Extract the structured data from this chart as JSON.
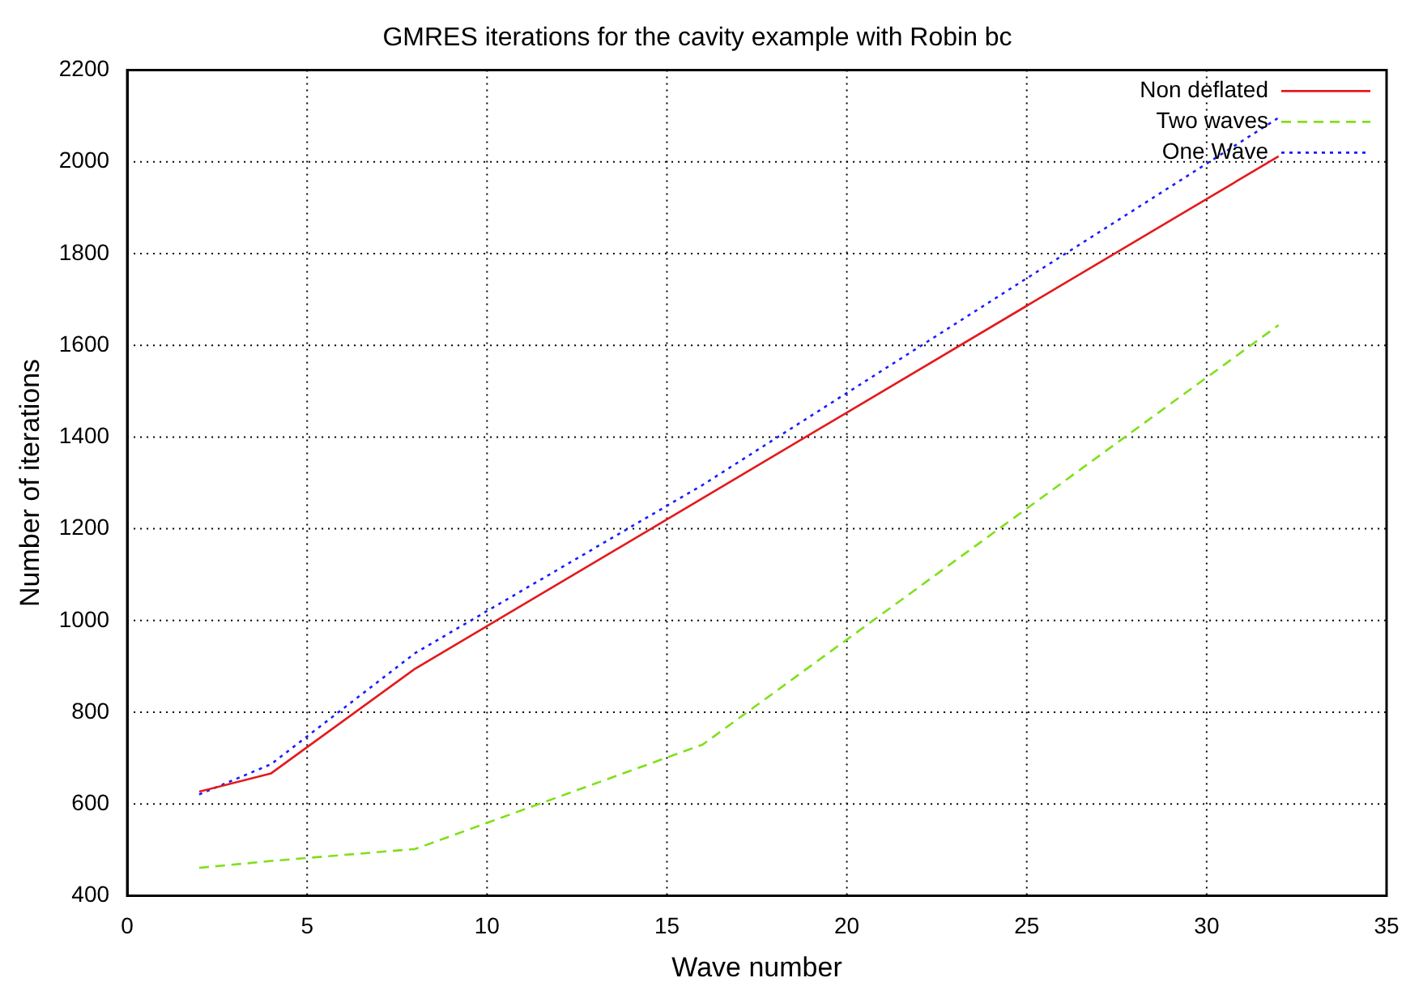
{
  "chart_data": {
    "type": "line",
    "title": "GMRES iterations for the cavity example with Robin bc",
    "xlabel": "Wave number",
    "ylabel": "Number of iterations",
    "x": [
      2,
      4,
      8,
      16,
      32
    ],
    "series": [
      {
        "name": "Non deflated",
        "color": "#e31a1c",
        "line_style": "solid",
        "values": [
          627,
          667,
          895,
          1267,
          2012
        ]
      },
      {
        "name": "Two waves",
        "color": "#7fe01a",
        "line_style": "dashed",
        "values": [
          461,
          476,
          502,
          730,
          1644
        ]
      },
      {
        "name": "One Wave",
        "color": "#1a1aff",
        "line_style": "dotted",
        "values": [
          621,
          687,
          929,
          1296,
          2096
        ]
      }
    ],
    "xlim": [
      0,
      35
    ],
    "xticks": [
      0,
      5,
      10,
      15,
      20,
      25,
      30,
      35
    ],
    "ylim": [
      400,
      2200
    ],
    "yticks": [
      400,
      600,
      800,
      1000,
      1200,
      1400,
      1600,
      1800,
      2000,
      2200
    ],
    "grid": true,
    "legend": "top right",
    "marker": "none"
  }
}
